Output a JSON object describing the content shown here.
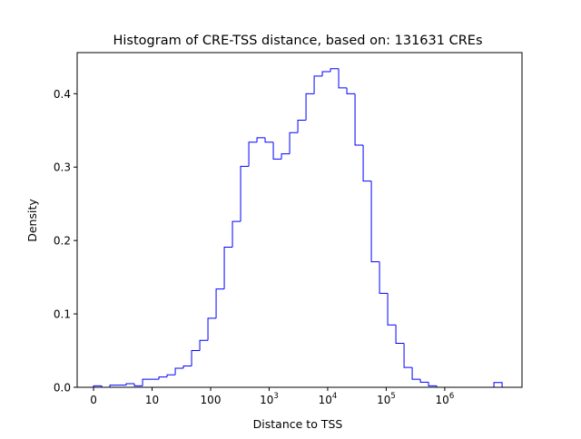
{
  "chart_data": {
    "type": "histogram",
    "title": "Histogram of CRE-TSS distance, based on: 131631 CREs",
    "xlabel": "Distance to TSS",
    "ylabel": "Density",
    "x_scale": "log10 of distance (0 shown at origin)",
    "xlim_log10": [
      -0.28,
      7.32
    ],
    "ylim": [
      0,
      0.456
    ],
    "grid": false,
    "legend": "none",
    "line_color": "#0000ff",
    "x_ticks": [
      {
        "value": 0,
        "base": "0",
        "exp": ""
      },
      {
        "value": 1,
        "base": "10",
        "exp": ""
      },
      {
        "value": 2,
        "base": "100",
        "exp": ""
      },
      {
        "value": 3,
        "base": "10",
        "exp": "3"
      },
      {
        "value": 4,
        "base": "10",
        "exp": "4"
      },
      {
        "value": 5,
        "base": "10",
        "exp": "5"
      },
      {
        "value": 6,
        "base": "10",
        "exp": "6"
      }
    ],
    "y_ticks": [
      {
        "value": 0,
        "label": "0.0"
      },
      {
        "value": 0.1,
        "label": "0.1"
      },
      {
        "value": 0.2,
        "label": "0.2"
      },
      {
        "value": 0.3,
        "label": "0.3"
      },
      {
        "value": 0.4,
        "label": "0.4"
      }
    ],
    "bin_range_log10": [
      0,
      6.98
    ],
    "densities": [
      0.002,
      0,
      0.003,
      0.003,
      0.005,
      0.002,
      0.011,
      0.011,
      0.014,
      0.017,
      0.026,
      0.029,
      0.05,
      0.064,
      0.094,
      0.134,
      0.191,
      0.226,
      0.301,
      0.334,
      0.34,
      0.334,
      0.311,
      0.318,
      0.347,
      0.364,
      0.4,
      0.424,
      0.43,
      0.434,
      0.408,
      0.4,
      0.33,
      0.281,
      0.171,
      0.128,
      0.085,
      0.06,
      0.027,
      0.011,
      0.007,
      0.002,
      0,
      0,
      0,
      0,
      0,
      0,
      0,
      0.0065
    ]
  }
}
